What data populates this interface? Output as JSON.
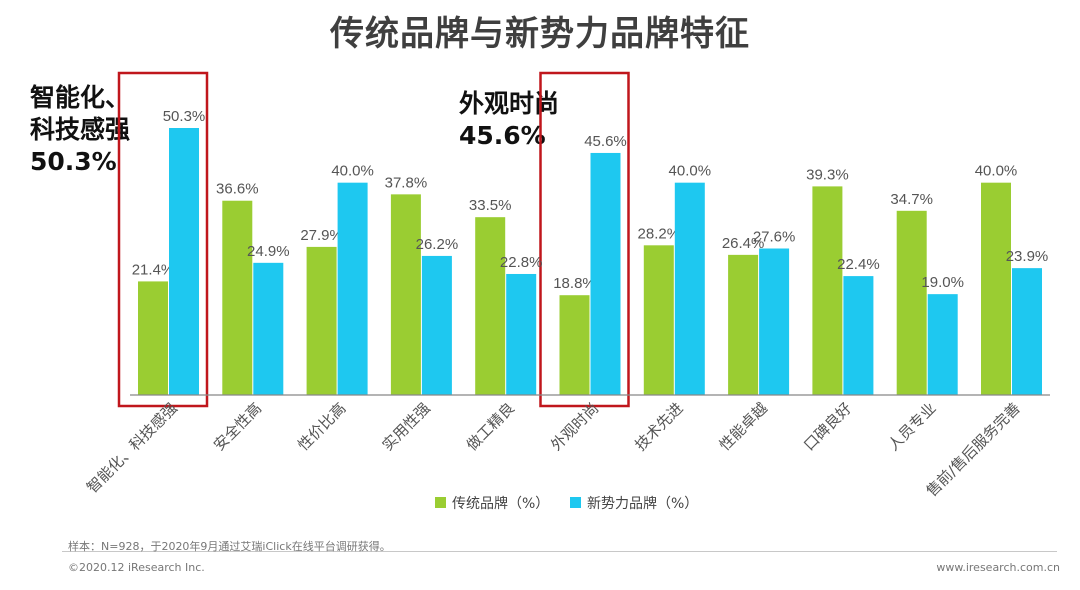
{
  "title": "传统品牌与新势力品牌特征",
  "callouts": [
    {
      "lines": [
        "智能化、",
        "科技感强",
        "50.3%"
      ]
    },
    {
      "lines": [
        "外观时尚",
        "45.6%"
      ]
    }
  ],
  "colors": {
    "traditional": "#9acd32",
    "new": "#1ec8f0",
    "highlight": "#c0161c",
    "label": "#555555",
    "axis": "#888888"
  },
  "chart_data": {
    "type": "bar",
    "title": "传统品牌与新势力品牌特征",
    "categories": [
      "智能化、科技感强",
      "安全性高",
      "性价比高",
      "实用性强",
      "做工精良",
      "外观时尚",
      "技术先进",
      "性能卓越",
      "口碑良好",
      "人员专业",
      "售前/售后服务完善"
    ],
    "series": [
      {
        "name": "传统品牌（%）",
        "values": [
          21.4,
          36.6,
          27.9,
          37.8,
          33.5,
          18.8,
          28.2,
          26.4,
          39.3,
          34.7,
          40.0
        ]
      },
      {
        "name": "新势力品牌（%）",
        "values": [
          50.3,
          24.9,
          40.0,
          26.2,
          22.8,
          45.6,
          40.0,
          27.6,
          22.4,
          19.0,
          23.9
        ]
      }
    ],
    "value_labels": [
      [
        "21.4%",
        "36.6%",
        "27.9%",
        "37.8%",
        "33.5%",
        "18.8%",
        "28.2%",
        "26.4%",
        "39.3%",
        "34.7%",
        "40.0%"
      ],
      [
        "50.3%",
        "24.9%",
        "40.0%",
        "26.2%",
        "22.8%",
        "45.6%",
        "40.0%",
        "27.6%",
        "22.4%",
        "19.0%",
        "23.9%"
      ]
    ],
    "highlighted_categories": [
      0,
      5
    ],
    "ylim": [
      0,
      53
    ],
    "grid": false,
    "legend_position": "bottom"
  },
  "footer": {
    "sample_note": "样本：N=928，于2020年9月通过艾瑞iClick在线平台调研获得。",
    "copyright": "©2020.12 iResearch Inc.",
    "website": "www.iresearch.com.cn"
  }
}
